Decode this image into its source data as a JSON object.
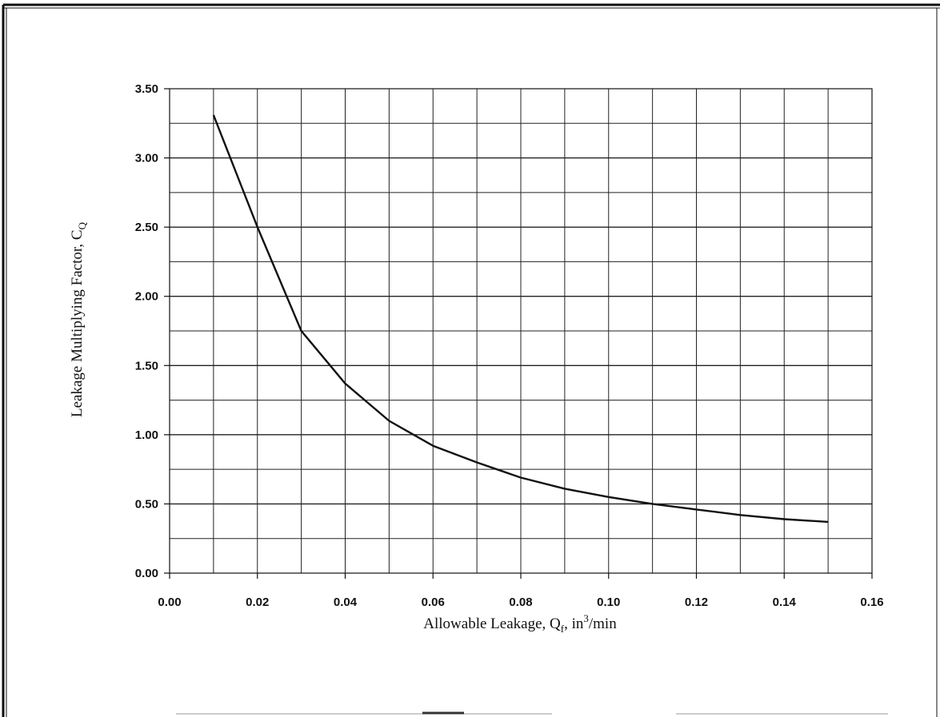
{
  "chart_data": {
    "type": "line",
    "title": "",
    "xlabel": {
      "main": "Allowable Leakage, Q",
      "sub": "f",
      "mid": ", in",
      "sup": "3",
      "end": "/min"
    },
    "ylabel": {
      "main": "Leakage Multiplying Factor, C",
      "sub": "Q"
    },
    "xlim": [
      0,
      0.16
    ],
    "ylim": [
      0,
      3.5
    ],
    "x_ticks": [
      "0.00",
      "0.02",
      "0.04",
      "0.06",
      "0.08",
      "0.10",
      "0.12",
      "0.14",
      "0.16"
    ],
    "y_ticks": [
      "0.00",
      "0.50",
      "1.00",
      "1.50",
      "2.00",
      "2.50",
      "3.00",
      "3.50"
    ],
    "grid": true,
    "x_grid_step": 0.01,
    "y_grid_step": 0.25,
    "series": [
      {
        "x": [
          0.01,
          0.02,
          0.03,
          0.04,
          0.05,
          0.06,
          0.07,
          0.08,
          0.09,
          0.1,
          0.11,
          0.12,
          0.13,
          0.14,
          0.15
        ],
        "y": [
          3.31,
          2.5,
          1.75,
          1.37,
          1.1,
          0.92,
          0.8,
          0.69,
          0.61,
          0.55,
          0.5,
          0.46,
          0.42,
          0.39,
          0.37
        ]
      }
    ]
  }
}
